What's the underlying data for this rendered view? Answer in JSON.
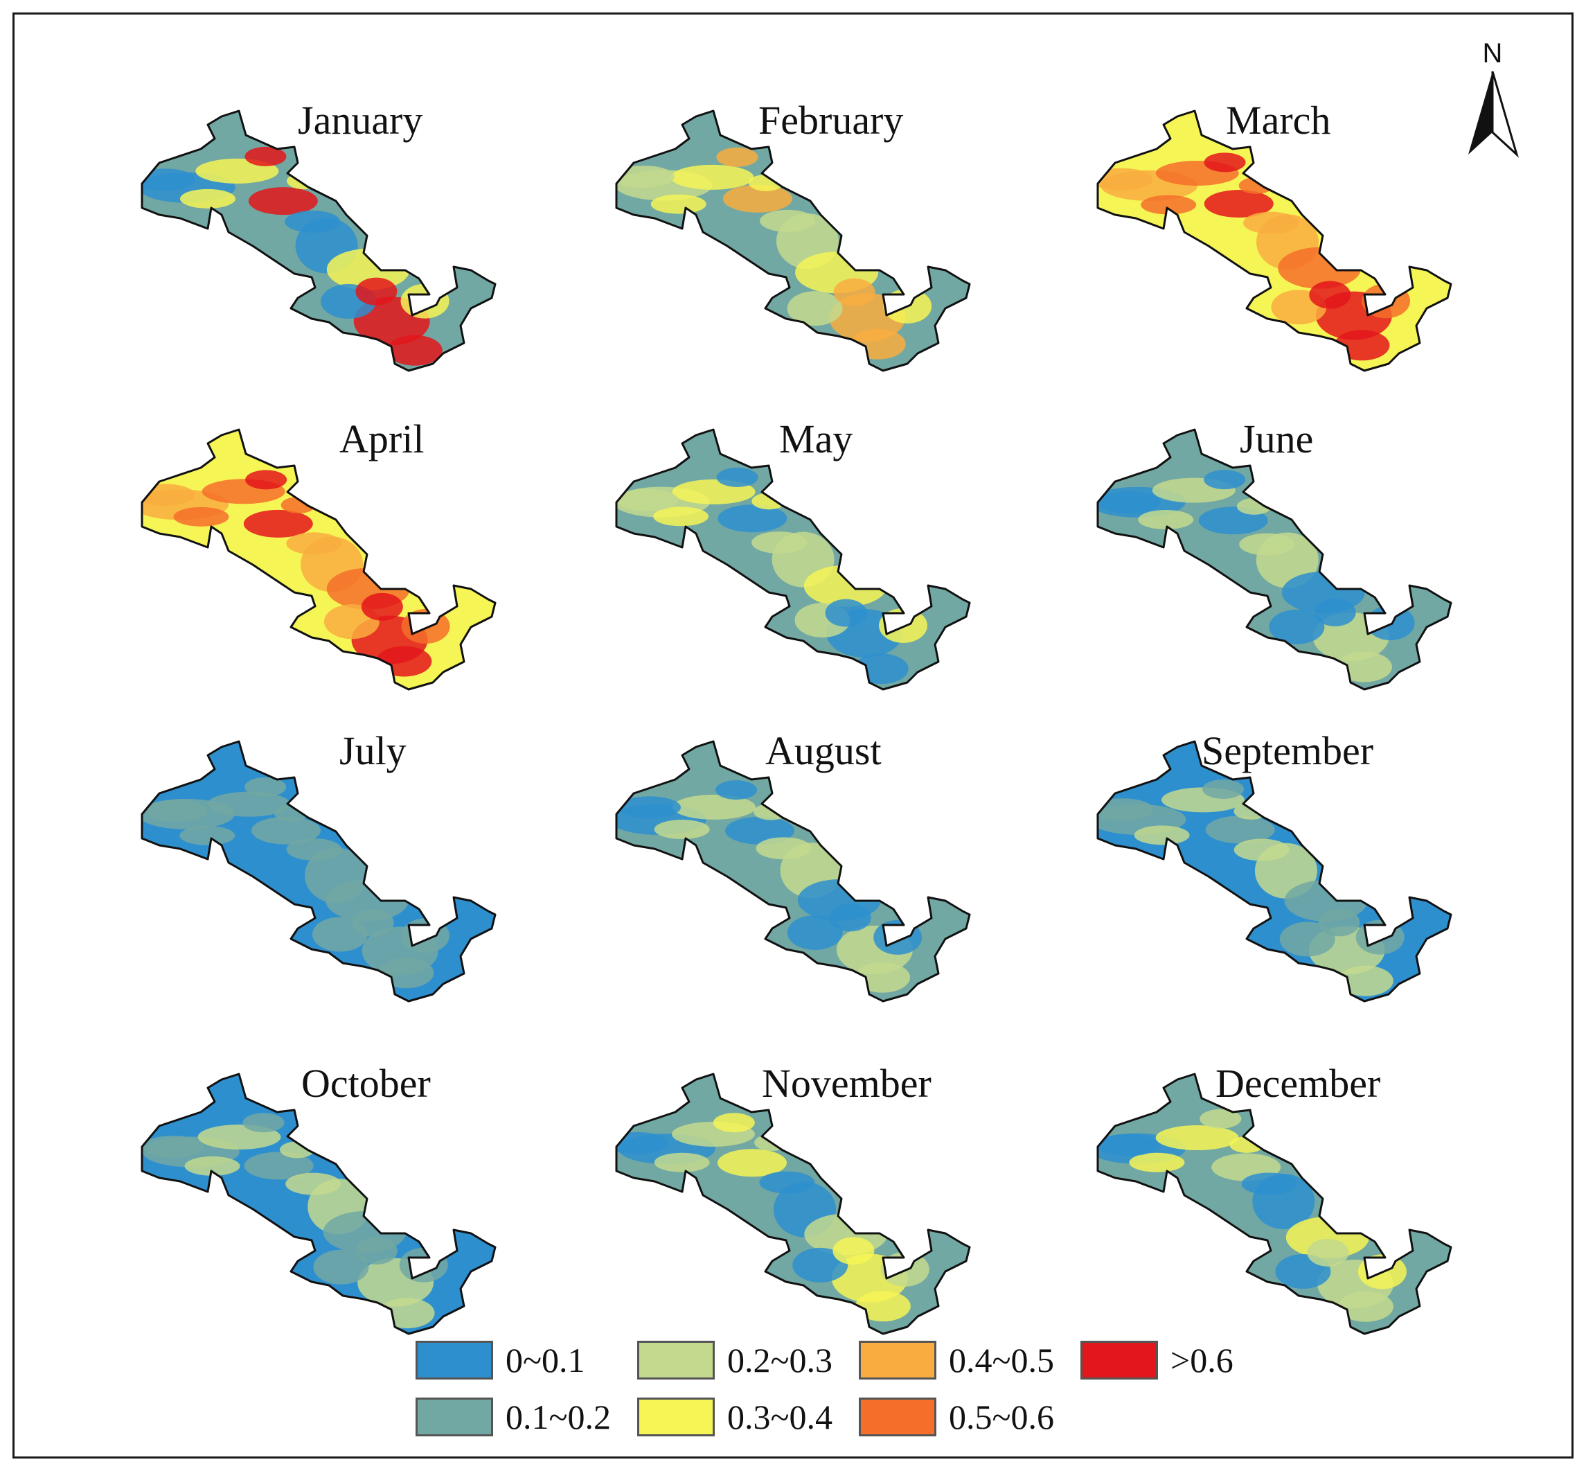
{
  "figure": {
    "north_arrow": {
      "letter": "N"
    },
    "classes": [
      {
        "label": "0~0.1",
        "color": "#2e8fcf"
      },
      {
        "label": "0.1~0.2",
        "color": "#72a8a3"
      },
      {
        "label": "0.2~0.3",
        "color": "#c3d98e"
      },
      {
        "label": "0.3~0.4",
        "color": "#f6f556"
      },
      {
        "label": "0.4~0.5",
        "color": "#f9ad40"
      },
      {
        "label": "0.5~0.6",
        "color": "#f56f2a"
      },
      {
        "label": ">0.6",
        "color": "#e3161b"
      }
    ],
    "months": [
      {
        "name": "January",
        "dominant_classes": [
          "0.1~0.2",
          "0~0.1",
          "0.3~0.4",
          ">0.6"
        ]
      },
      {
        "name": "February",
        "dominant_classes": [
          "0.1~0.2",
          "0.2~0.3",
          "0.3~0.4",
          "0.4~0.5"
        ]
      },
      {
        "name": "March",
        "dominant_classes": [
          "0.3~0.4",
          "0.4~0.5",
          "0.5~0.6",
          ">0.6"
        ]
      },
      {
        "name": "April",
        "dominant_classes": [
          "0.3~0.4",
          "0.4~0.5",
          "0.5~0.6",
          ">0.6"
        ]
      },
      {
        "name": "May",
        "dominant_classes": [
          "0.1~0.2",
          "0.2~0.3",
          "0.3~0.4",
          "0~0.1"
        ]
      },
      {
        "name": "June",
        "dominant_classes": [
          "0.1~0.2",
          "0~0.1",
          "0.2~0.3"
        ]
      },
      {
        "name": "July",
        "dominant_classes": [
          "0~0.1",
          "0.1~0.2"
        ]
      },
      {
        "name": "August",
        "dominant_classes": [
          "0.1~0.2",
          "0~0.1",
          "0.2~0.3"
        ]
      },
      {
        "name": "September",
        "dominant_classes": [
          "0~0.1",
          "0.1~0.2",
          "0.2~0.3"
        ]
      },
      {
        "name": "October",
        "dominant_classes": [
          "0~0.1",
          "0.1~0.2",
          "0.2~0.3"
        ]
      },
      {
        "name": "November",
        "dominant_classes": [
          "0.1~0.2",
          "0~0.1",
          "0.2~0.3",
          "0.3~0.4"
        ]
      },
      {
        "name": "December",
        "dominant_classes": [
          "0.1~0.2",
          "0~0.1",
          "0.3~0.4",
          "0.2~0.3"
        ]
      }
    ]
  }
}
